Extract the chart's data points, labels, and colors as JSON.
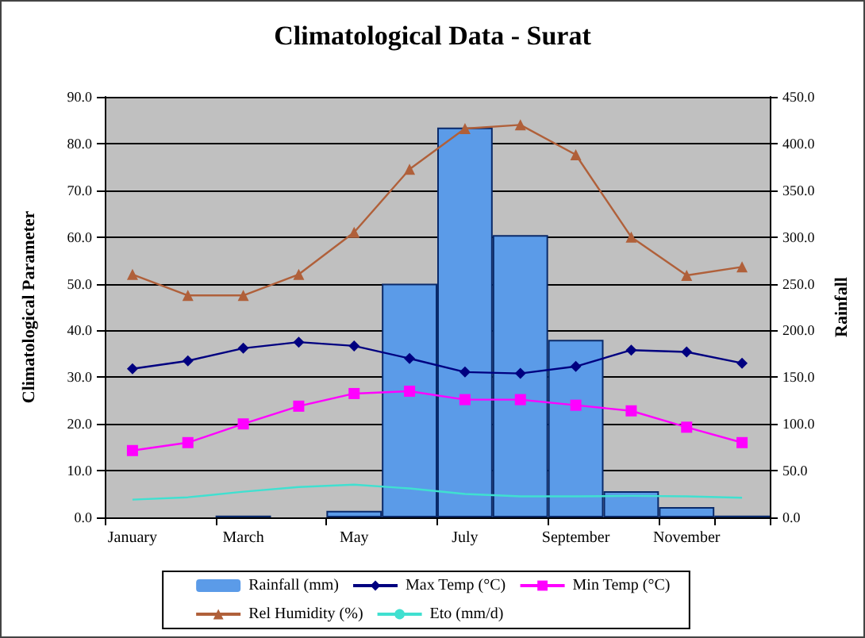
{
  "chart_data": {
    "type": "line",
    "title": "Climatological Data - Surat",
    "ylabel": "Climatological Parameter",
    "y2label": "Rainfall",
    "categories": [
      "January",
      null,
      "March",
      null,
      "May",
      null,
      "July",
      null,
      "September",
      null,
      "November",
      null
    ],
    "ylim": [
      0,
      90
    ],
    "yticks": [
      {
        "value": 0,
        "label": "0.0"
      },
      {
        "value": 10,
        "label": "10.0"
      },
      {
        "value": 20,
        "label": "20.0"
      },
      {
        "value": 30,
        "label": "30.0"
      },
      {
        "value": 40,
        "label": "40.0"
      },
      {
        "value": 50,
        "label": "50.0"
      },
      {
        "value": 60,
        "label": "60.0"
      },
      {
        "value": 70,
        "label": "70.0"
      },
      {
        "value": 80,
        "label": "80.0"
      },
      {
        "value": 90,
        "label": "90.0"
      }
    ],
    "y2lim": [
      0,
      450
    ],
    "y2ticks": [
      {
        "value": 0,
        "label": "0.0"
      },
      {
        "value": 50,
        "label": "50.0"
      },
      {
        "value": 100,
        "label": "100.0"
      },
      {
        "value": 150,
        "label": "150.0"
      },
      {
        "value": 200,
        "label": "200.0"
      },
      {
        "value": 250,
        "label": "250.0"
      },
      {
        "value": 300,
        "label": "300.0"
      },
      {
        "value": 350,
        "label": "350.0"
      },
      {
        "value": 400,
        "label": "400.0"
      },
      {
        "value": 450,
        "label": "450.0"
      }
    ],
    "grid": "y",
    "legend": "bottom",
    "series": [
      {
        "name": "Rainfall (mm)",
        "type": "bar",
        "axis": "y2",
        "color": "#5b9be8",
        "values": [
          0,
          0,
          2,
          0,
          7,
          250,
          417,
          302,
          190,
          28,
          11,
          2
        ]
      },
      {
        "name": "Max Temp (°C)",
        "type": "line",
        "marker": "diamond",
        "color": "#000080",
        "values": [
          31.8,
          33.5,
          36.2,
          37.5,
          36.7,
          34.0,
          31.1,
          30.8,
          32.3,
          35.8,
          35.4,
          33.0
        ]
      },
      {
        "name": "Min Temp (°C)",
        "type": "line",
        "marker": "square",
        "color": "#ff00ff",
        "values": [
          14.3,
          16.0,
          20.0,
          23.8,
          26.5,
          27.0,
          25.2,
          25.2,
          24.0,
          22.8,
          19.3,
          16.0
        ]
      },
      {
        "name": "Rel Humidity (%)",
        "type": "line",
        "marker": "triangle",
        "color": "#b0603a",
        "values": [
          52.0,
          47.5,
          47.5,
          52.0,
          61.0,
          74.5,
          83.2,
          84.0,
          77.6,
          60.0,
          51.8,
          53.6
        ]
      },
      {
        "name": "Eto (mm/d)",
        "type": "line",
        "marker": "none",
        "color": "#40e0d0",
        "values": [
          3.8,
          4.3,
          5.5,
          6.5,
          7.0,
          6.2,
          5.0,
          4.5,
          4.5,
          4.6,
          4.5,
          4.2
        ]
      }
    ]
  }
}
